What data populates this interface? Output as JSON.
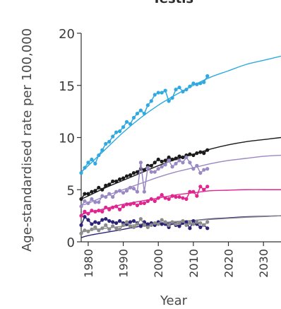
{
  "chart_data": {
    "type": "line",
    "title": "Testis",
    "xlabel": "Year",
    "ylabel": "Age-standardised rate per 100,000",
    "xlim": [
      1978,
      2035
    ],
    "ylim": [
      0,
      20
    ],
    "x_ticks": [
      "1980",
      "1990",
      "2000",
      "2010",
      "2020",
      "2030"
    ],
    "y_ticks": [
      "0",
      "5",
      "10",
      "15",
      "20"
    ],
    "grid": false,
    "legend": "none",
    "series": [
      {
        "color": "#2fa9df",
        "observed": {
          "x": [
            1978,
            1979,
            1980,
            1981,
            1982,
            1983,
            1984,
            1985,
            1986,
            1987,
            1988,
            1989,
            1990,
            1991,
            1992,
            1993,
            1994,
            1995,
            1996,
            1997,
            1998,
            1999,
            2000,
            2001,
            2002,
            2003,
            2004,
            2005,
            2006,
            2007,
            2008,
            2009,
            2010,
            2011,
            2012,
            2013,
            2014
          ],
          "y": [
            6.6,
            7.1,
            7.6,
            7.9,
            7.5,
            8.3,
            8.8,
            9.4,
            9.6,
            10.1,
            10.5,
            10.6,
            11.0,
            11.5,
            11.3,
            11.9,
            12.3,
            12.6,
            12.3,
            13.1,
            13.5,
            14.1,
            14.3,
            14.3,
            14.5,
            13.5,
            13.8,
            14.6,
            14.8,
            14.4,
            14.6,
            14.9,
            15.2,
            15.1,
            15.2,
            15.3,
            15.9
          ]
        },
        "fitted": {
          "x": [
            1978,
            1980,
            1985,
            1990,
            1995,
            2000,
            2005,
            2010,
            2015,
            2020,
            2025,
            2030,
            2035
          ],
          "y": [
            6.7,
            7.3,
            8.9,
            10.5,
            11.9,
            13.1,
            14.1,
            15.0,
            15.8,
            16.4,
            17.0,
            17.4,
            17.8
          ]
        }
      },
      {
        "color": "#1a1a1a",
        "observed": {
          "x": [
            1978,
            1979,
            1980,
            1981,
            1982,
            1983,
            1984,
            1985,
            1986,
            1987,
            1988,
            1989,
            1990,
            1991,
            1992,
            1993,
            1994,
            1995,
            1996,
            1997,
            1998,
            1999,
            2000,
            2001,
            2002,
            2003,
            2004,
            2005,
            2006,
            2007,
            2008,
            2009,
            2010,
            2011,
            2012,
            2013,
            2014
          ],
          "y": [
            4.1,
            4.6,
            4.6,
            4.8,
            4.9,
            5.2,
            5.0,
            5.4,
            5.5,
            5.8,
            5.8,
            6.0,
            6.1,
            6.3,
            6.4,
            6.6,
            6.7,
            7.0,
            6.9,
            7.3,
            7.3,
            7.6,
            7.9,
            7.7,
            7.8,
            8.1,
            7.9,
            8.0,
            8.2,
            8.1,
            8.3,
            8.4,
            8.3,
            8.5,
            8.6,
            8.5,
            8.8
          ]
        },
        "fitted": {
          "x": [
            1978,
            1980,
            1985,
            1990,
            1995,
            2000,
            2005,
            2010,
            2015,
            2020,
            2025,
            2030,
            2035
          ],
          "y": [
            4.1,
            4.4,
            5.2,
            5.9,
            6.6,
            7.3,
            7.9,
            8.4,
            8.9,
            9.3,
            9.6,
            9.8,
            10.0
          ]
        }
      },
      {
        "color": "#9a88c4",
        "observed": {
          "x": [
            1978,
            1979,
            1980,
            1981,
            1982,
            1983,
            1984,
            1985,
            1986,
            1987,
            1988,
            1989,
            1990,
            1991,
            1992,
            1993,
            1994,
            1995,
            1996,
            1997,
            1998,
            1999,
            2000,
            2001,
            2002,
            2003,
            2004,
            2005,
            2006,
            2007,
            2008,
            2009,
            2010,
            2011,
            2012,
            2013,
            2014
          ],
          "y": [
            3.4,
            3.9,
            3.7,
            4.1,
            3.8,
            3.8,
            4.4,
            4.3,
            4.6,
            4.3,
            4.8,
            4.9,
            4.7,
            4.9,
            5.2,
            5.1,
            4.8,
            7.6,
            4.8,
            7.1,
            6.7,
            6.7,
            7.0,
            7.2,
            7.4,
            7.8,
            7.2,
            7.5,
            7.8,
            7.6,
            8.1,
            7.6,
            7.0,
            7.3,
            6.6,
            6.9,
            7.0
          ]
        },
        "fitted": {
          "x": [
            1978,
            1980,
            1985,
            1990,
            1995,
            2000,
            2005,
            2010,
            2015,
            2020,
            2025,
            2030,
            2035
          ],
          "y": [
            3.5,
            3.7,
            4.4,
            5.0,
            5.6,
            6.2,
            6.7,
            7.1,
            7.5,
            7.8,
            8.0,
            8.2,
            8.3
          ]
        }
      },
      {
        "color": "#e0258f",
        "observed": {
          "x": [
            1978,
            1979,
            1980,
            1981,
            1982,
            1983,
            1984,
            1985,
            1986,
            1987,
            1988,
            1989,
            1990,
            1991,
            1992,
            1993,
            1994,
            1995,
            1996,
            1997,
            1998,
            1999,
            2000,
            2001,
            2002,
            2003,
            2004,
            2005,
            2006,
            2007,
            2008,
            2009,
            2010,
            2011,
            2012,
            2013,
            2014
          ],
          "y": [
            2.5,
            2.9,
            2.7,
            3.0,
            2.9,
            3.0,
            2.9,
            3.3,
            3.1,
            3.3,
            3.4,
            3.1,
            3.4,
            3.6,
            3.6,
            3.7,
            3.5,
            3.7,
            3.7,
            3.9,
            4.1,
            3.9,
            4.2,
            4.5,
            4.2,
            4.1,
            4.4,
            4.3,
            4.3,
            4.2,
            4.1,
            4.8,
            4.8,
            4.4,
            5.3,
            5.0,
            5.3
          ]
        },
        "fitted": {
          "x": [
            1978,
            1980,
            1985,
            1990,
            1995,
            2000,
            2005,
            2010,
            2015,
            2020,
            2025,
            2030,
            2035
          ],
          "y": [
            2.6,
            2.8,
            3.2,
            3.6,
            3.9,
            4.2,
            4.5,
            4.7,
            4.9,
            4.95,
            5.0,
            5.0,
            5.0
          ]
        }
      },
      {
        "color": "#2b2478",
        "observed": {
          "x": [
            1978,
            1979,
            1980,
            1981,
            1982,
            1983,
            1984,
            1985,
            1986,
            1987,
            1988,
            1989,
            1990,
            1991,
            1992,
            1993,
            1994,
            1995,
            1996,
            1997,
            1998,
            1999,
            2000,
            2001,
            2002,
            2003,
            2004,
            2005,
            2006,
            2007,
            2008,
            2009,
            2010,
            2011,
            2012,
            2013,
            2014
          ],
          "y": [
            1.6,
            2.4,
            2.1,
            1.7,
            1.9,
            1.8,
            2.1,
            2.2,
            2.0,
            1.9,
            1.8,
            2.0,
            1.8,
            1.7,
            1.9,
            2.0,
            1.8,
            1.5,
            1.9,
            1.7,
            1.8,
            1.6,
            1.9,
            1.7,
            1.7,
            1.4,
            1.8,
            1.6,
            1.5,
            1.8,
            1.9,
            1.3,
            2.0,
            1.7,
            1.4,
            1.6,
            1.3
          ]
        },
        "fitted": {
          "x": [
            1978,
            1980,
            1985,
            1990,
            1995,
            2000,
            2005,
            2010,
            2015,
            2020,
            2025,
            2030,
            2035
          ],
          "y": [
            0.4,
            0.6,
            0.9,
            1.2,
            1.5,
            1.7,
            1.9,
            2.05,
            2.2,
            2.3,
            2.4,
            2.45,
            2.5
          ]
        }
      },
      {
        "color": "#8c8c8c",
        "observed": {
          "x": [
            1978,
            1979,
            1980,
            1981,
            1982,
            1983,
            1984,
            1985,
            1986,
            1987,
            1988,
            1989,
            1990,
            1991,
            1992,
            1993,
            1994,
            1995,
            1996,
            1997,
            1998,
            1999,
            2000,
            2001,
            2002,
            2003,
            2004,
            2005,
            2006,
            2007,
            2008,
            2009,
            2010,
            2011,
            2012,
            2013,
            2014
          ],
          "y": [
            0.8,
            1.1,
            1.0,
            1.2,
            1.4,
            1.1,
            1.3,
            1.6,
            1.2,
            1.5,
            1.3,
            1.2,
            1.6,
            1.9,
            1.5,
            1.4,
            1.7,
            2.2,
            1.6,
            1.4,
            1.6,
            1.8,
            1.7,
            2.1,
            1.9,
            1.6,
            1.9,
            1.7,
            1.8,
            2.0,
            1.6,
            1.8,
            1.7,
            1.9,
            1.8,
            1.6,
            1.9
          ]
        },
        "fitted": {
          "x": [
            1978,
            1980,
            1985,
            1990,
            1995,
            2000,
            2005,
            2010,
            2015,
            2020,
            2025,
            2030,
            2035
          ],
          "y": [
            1.0,
            1.1,
            1.3,
            1.5,
            1.7,
            1.8,
            1.95,
            2.05,
            2.15,
            2.25,
            2.35,
            2.42,
            2.5
          ]
        }
      }
    ]
  }
}
